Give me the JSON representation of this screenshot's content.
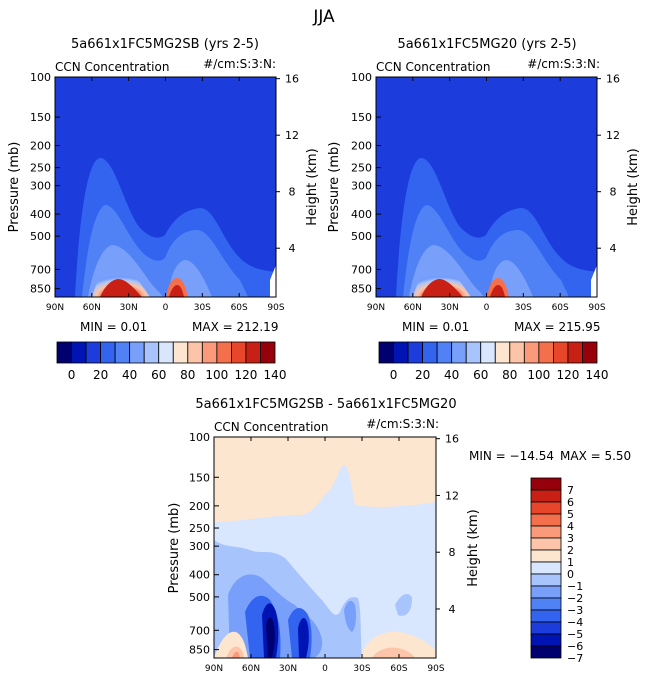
{
  "figure_title": "JJA",
  "colors": {
    "top_scale": [
      "#00006e",
      "#0014b4",
      "#1c3cdc",
      "#3264f0",
      "#5082f6",
      "#78a0fa",
      "#a8c4fc",
      "#d8e6fe",
      "#fde6d0",
      "#fcc4a8",
      "#fa9a7a",
      "#f4704c",
      "#e8462a",
      "#c82014",
      "#96000a"
    ],
    "diff_scale": [
      "#00006e",
      "#0014b4",
      "#1c3cdc",
      "#3264f0",
      "#5082f6",
      "#78a0fa",
      "#a8c4fc",
      "#d8e6fe",
      "#fde6d0",
      "#fcc4a8",
      "#fa9a7a",
      "#f4704c",
      "#e8462a",
      "#c82014",
      "#96000a"
    ],
    "field": "#1c3cdc",
    "diff_field": "#fde6d0"
  },
  "chart_data": [
    {
      "type": "heatmap",
      "title": "5a661x1FC5MG2SB (yrs 2-5)",
      "field_label": "CCN Concentration",
      "units_label": "#/cm:S:3:N:",
      "ylabel": "Pressure (mb)",
      "ylabel_right": "Height (km)",
      "x_ticks": [
        "90N",
        "60N",
        "30N",
        "0",
        "30S",
        "60S",
        "90S"
      ],
      "x_values": [
        90,
        60,
        30,
        0,
        -30,
        -60,
        -90
      ],
      "xlim": [
        90,
        -90
      ],
      "y_ticks": [
        "100",
        "150",
        "200",
        "250",
        "300",
        "400",
        "500",
        "700",
        "850"
      ],
      "y_values": [
        100,
        150,
        200,
        250,
        300,
        400,
        500,
        700,
        850
      ],
      "ylim": [
        100,
        925
      ],
      "y_right_ticks": [
        "16",
        "12",
        "8",
        "4"
      ],
      "y_right_values": [
        16,
        12,
        8,
        4
      ],
      "min_label": "MIN =    0.01",
      "max_label": "MAX = 212.19",
      "min": 0.01,
      "max": 212.19,
      "colorbar_labels": [
        "0",
        "20",
        "40",
        "60",
        "80",
        "100",
        "120",
        "140"
      ],
      "colorbar_levels": [
        0,
        20,
        40,
        60,
        80,
        100,
        120,
        140
      ]
    },
    {
      "type": "heatmap",
      "title": "5a661x1FC5MG20 (yrs 2-5)",
      "field_label": "CCN Concentration",
      "units_label": "#/cm:S:3:N:",
      "ylabel": "Pressure (mb)",
      "ylabel_right": "Height (km)",
      "x_ticks": [
        "90N",
        "60N",
        "30N",
        "0",
        "30S",
        "60S",
        "90S"
      ],
      "x_values": [
        90,
        60,
        30,
        0,
        -30,
        -60,
        -90
      ],
      "xlim": [
        90,
        -90
      ],
      "y_ticks": [
        "100",
        "150",
        "200",
        "250",
        "300",
        "400",
        "500",
        "700",
        "850"
      ],
      "y_values": [
        100,
        150,
        200,
        250,
        300,
        400,
        500,
        700,
        850
      ],
      "ylim": [
        100,
        925
      ],
      "y_right_ticks": [
        "16",
        "12",
        "8",
        "4"
      ],
      "y_right_values": [
        16,
        12,
        8,
        4
      ],
      "min_label": "MIN =    0.01",
      "max_label": "MAX = 215.95",
      "min": 0.01,
      "max": 215.95,
      "colorbar_labels": [
        "0",
        "20",
        "40",
        "60",
        "80",
        "100",
        "120",
        "140"
      ],
      "colorbar_levels": [
        0,
        20,
        40,
        60,
        80,
        100,
        120,
        140
      ]
    },
    {
      "type": "heatmap",
      "title": "5a661x1FC5MG2SB - 5a661x1FC5MG20",
      "field_label": "CCN Concentration",
      "units_label": "#/cm:S:3:N:",
      "ylabel": "Pressure (mb)",
      "ylabel_right": "Height (km)",
      "x_ticks": [
        "90N",
        "60N",
        "30N",
        "0",
        "30S",
        "60S",
        "90S"
      ],
      "x_values": [
        90,
        60,
        30,
        0,
        -30,
        -60,
        -90
      ],
      "xlim": [
        90,
        -90
      ],
      "y_ticks": [
        "100",
        "150",
        "200",
        "250",
        "300",
        "400",
        "500",
        "700",
        "850"
      ],
      "y_values": [
        100,
        150,
        200,
        250,
        300,
        400,
        500,
        700,
        850
      ],
      "ylim": [
        100,
        925
      ],
      "y_right_ticks": [
        "16",
        "12",
        "8",
        "4"
      ],
      "y_right_values": [
        16,
        12,
        8,
        4
      ],
      "min_label": "MIN = −14.54",
      "max_label": "MAX =    5.50",
      "min": -14.54,
      "max": 5.5,
      "colorbar_labels": [
        "7",
        "6",
        "5",
        "4",
        "3",
        "2",
        "1",
        "0",
        "−1",
        "−2",
        "−3",
        "−4",
        "−5",
        "−6",
        "−7"
      ],
      "colorbar_levels": [
        7,
        6,
        5,
        4,
        3,
        2,
        1,
        0,
        -1,
        -2,
        -3,
        -4,
        -5,
        -6,
        -7
      ]
    }
  ]
}
